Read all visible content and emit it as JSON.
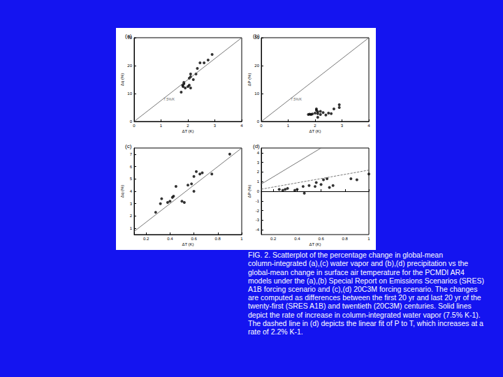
{
  "chart_data": [
    {
      "type": "scatter",
      "title": "(a)",
      "x_label": "ΔT (K)",
      "y_label": "Δq (%)",
      "xlim": [
        0,
        4
      ],
      "xticks": [
        0,
        1,
        2,
        3,
        4
      ],
      "ylim": [
        0,
        30
      ],
      "yticks": [
        0,
        10,
        20,
        30
      ],
      "grid": false,
      "series": [
        {
          "type": "scatter",
          "color": "#000000",
          "marker": "circle",
          "x": [
            1.75,
            1.8,
            1.82,
            1.85,
            1.85,
            1.9,
            2.0,
            2.05,
            2.05,
            2.1,
            2.1,
            2.1,
            2.2,
            2.3,
            2.35,
            2.45,
            2.6,
            2.75,
            2.9
          ],
          "values": [
            10.5,
            13,
            12.5,
            14,
            13.5,
            12,
            12.5,
            13,
            15.5,
            16,
            17,
            12,
            15,
            17,
            19,
            21,
            21,
            22,
            24
          ]
        },
        {
          "type": "line",
          "color": "#555555",
          "line_style": "solid",
          "x": [
            0,
            4
          ],
          "values": [
            0,
            30
          ]
        }
      ],
      "annotations": [
        {
          "text": "7.5%/K",
          "x": 1.3,
          "y": 8
        }
      ]
    },
    {
      "type": "scatter",
      "title": "(b)",
      "x_label": "ΔT (K)",
      "y_label": "ΔP (%)",
      "xlim": [
        0,
        4
      ],
      "xticks": [
        0,
        1,
        2,
        3,
        4
      ],
      "ylim": [
        0,
        30
      ],
      "yticks": [
        0,
        10,
        20,
        30
      ],
      "grid": false,
      "series": [
        {
          "type": "scatter",
          "color": "#000000",
          "marker": "circle",
          "x": [
            1.75,
            1.8,
            1.85,
            1.9,
            2.0,
            2.05,
            2.05,
            2.1,
            2.1,
            2.1,
            2.2,
            2.2,
            2.3,
            2.4,
            2.5,
            2.6,
            2.7,
            2.9,
            2.9
          ],
          "values": [
            2.5,
            2.6,
            2.5,
            2.7,
            3,
            4,
            4.5,
            3.5,
            2.8,
            1.5,
            2.5,
            3.6,
            3.2,
            2.3,
            3,
            2.8,
            4.5,
            5,
            6
          ]
        },
        {
          "type": "line",
          "color": "#555555",
          "line_style": "solid",
          "x": [
            0,
            4
          ],
          "values": [
            0,
            30
          ]
        }
      ],
      "annotations": [
        {
          "text": "7.5%/K",
          "x": 1.3,
          "y": 8
        }
      ]
    },
    {
      "type": "scatter",
      "title": "(c)",
      "x_label": "ΔT (K)",
      "y_label": "Δq (%)",
      "xlim": [
        0.1,
        1.0
      ],
      "xticks": [
        0.2,
        0.4,
        0.6,
        0.8,
        1
      ],
      "ylim": [
        0.5,
        7.5
      ],
      "yticks": [
        1,
        2,
        3,
        4,
        5,
        6,
        7
      ],
      "grid": false,
      "series": [
        {
          "type": "scatter",
          "color": "#000000",
          "marker": "circle",
          "x": [
            0.28,
            0.32,
            0.33,
            0.38,
            0.4,
            0.42,
            0.43,
            0.45,
            0.5,
            0.52,
            0.55,
            0.58,
            0.6,
            0.6,
            0.62,
            0.65,
            0.67,
            0.75,
            0.9
          ],
          "values": [
            2.3,
            3.0,
            3.4,
            3.1,
            3.2,
            3.5,
            3.6,
            4.4,
            3.2,
            3.1,
            4.5,
            4.6,
            4.0,
            5.2,
            5.6,
            5.4,
            5.5,
            5.4,
            7.0
          ]
        },
        {
          "type": "line",
          "color": "#555555",
          "line_style": "solid",
          "x": [
            0.1,
            1.0
          ],
          "values": [
            0.75,
            7.5
          ]
        }
      ]
    },
    {
      "type": "scatter",
      "title": "(d)",
      "x_label": "ΔT (K)",
      "y_label": "ΔP (%)",
      "xlim": [
        0.1,
        1.0
      ],
      "xticks": [
        0.2,
        0.4,
        0.6,
        0.8,
        1
      ],
      "ylim": [
        -4.5,
        4.5
      ],
      "yticks": [
        -4,
        -3,
        -2,
        -1,
        0,
        1,
        2,
        3,
        4
      ],
      "grid": false,
      "series": [
        {
          "type": "scatter",
          "color": "#000000",
          "marker": "circle",
          "x": [
            0.25,
            0.28,
            0.3,
            0.32,
            0.38,
            0.4,
            0.45,
            0.46,
            0.5,
            0.55,
            0.56,
            0.6,
            0.62,
            0.65,
            0.67,
            0.7,
            0.85,
            0.9,
            1.0
          ],
          "values": [
            0.2,
            0.1,
            0.2,
            0.3,
            0.1,
            0.2,
            0.5,
            -0.2,
            0.6,
            0.5,
            0.9,
            0.7,
            1.2,
            1.3,
            0.4,
            0.6,
            1.3,
            1.2,
            1.8
          ]
        },
        {
          "type": "line",
          "color": "#555555",
          "line_style": "solid",
          "x": [
            0,
            0.6
          ],
          "values": [
            0,
            4.5
          ]
        },
        {
          "type": "line",
          "color": "#555555",
          "line_style": "dashed",
          "x": [
            0.1,
            1.0
          ],
          "values": [
            0.22,
            2.2
          ]
        }
      ]
    }
  ],
  "caption": "FIG. 2. Scatterplot of the percentage change in global-mean column-integrated (a),(c) water vapor and (b),(d) precipitation vs the global-mean change in surface air temperature for the PCMDI AR4 models under the (a),(b) Special Report on Emissions Scenarios (SRES) A1B forcing scenario and (c),(d) 20C3M forcing scenario. The changes are computed as differences between the first 20 yr and last 20 yr of the twenty-first (SRES A1B) and twentieth (20C3M) centuries. Solid lines depict the rate of increase in column-integrated water vapor (7.5% K-1). The dashed line in (d) depicts the linear fit of P to T, which increases at a rate of 2.2% K-1."
}
